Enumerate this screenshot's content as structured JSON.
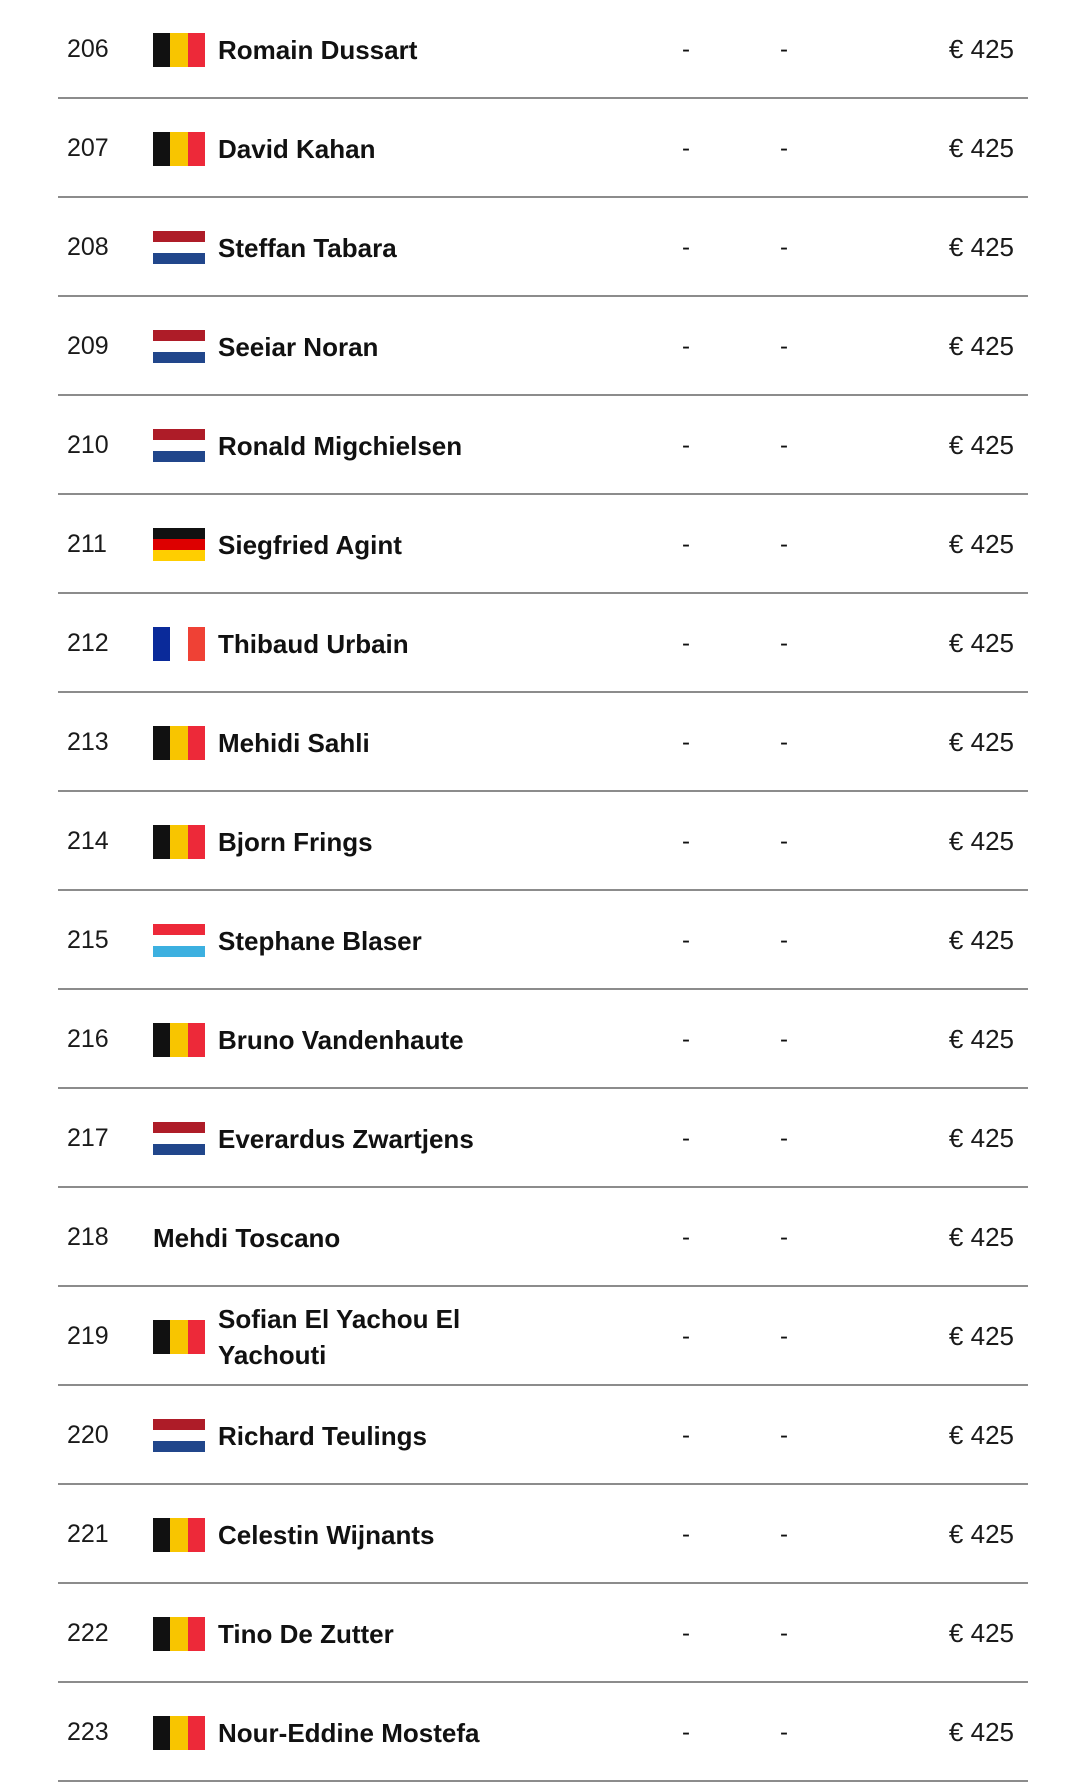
{
  "colors": {
    "be": [
      "#111111",
      "#f8c500",
      "#ed2939"
    ],
    "nl": [
      "#ae1c28",
      "#ffffff",
      "#21468b"
    ],
    "de": [
      "#111111",
      "#dd0000",
      "#ffce00"
    ],
    "fr": [
      "#0a2a9a",
      "#ffffff",
      "#ef4135"
    ],
    "lu": [
      "#ed2939",
      "#ffffff",
      "#3cb0e0"
    ],
    "divider": "#8c8c8c"
  },
  "rows": [
    {
      "rank": "206",
      "flag": "be",
      "name": "Romain Dussart",
      "col_a": "-",
      "col_b": "-",
      "prize": "€ 425"
    },
    {
      "rank": "207",
      "flag": "be",
      "name": "David Kahan",
      "col_a": "-",
      "col_b": "-",
      "prize": "€ 425"
    },
    {
      "rank": "208",
      "flag": "nl",
      "name": "Steffan Tabara",
      "col_a": "-",
      "col_b": "-",
      "prize": "€ 425"
    },
    {
      "rank": "209",
      "flag": "nl",
      "name": "Seeiar Noran",
      "col_a": "-",
      "col_b": "-",
      "prize": "€ 425"
    },
    {
      "rank": "210",
      "flag": "nl",
      "name": "Ronald Migchielsen",
      "col_a": "-",
      "col_b": "-",
      "prize": "€ 425"
    },
    {
      "rank": "211",
      "flag": "de",
      "name": "Siegfried Agint",
      "col_a": "-",
      "col_b": "-",
      "prize": "€ 425"
    },
    {
      "rank": "212",
      "flag": "fr",
      "name": "Thibaud Urbain",
      "col_a": "-",
      "col_b": "-",
      "prize": "€ 425"
    },
    {
      "rank": "213",
      "flag": "be",
      "name": "Mehidi Sahli",
      "col_a": "-",
      "col_b": "-",
      "prize": "€ 425"
    },
    {
      "rank": "214",
      "flag": "be",
      "name": "Bjorn Frings",
      "col_a": "-",
      "col_b": "-",
      "prize": "€ 425"
    },
    {
      "rank": "215",
      "flag": "lu",
      "name": "Stephane Blaser",
      "col_a": "-",
      "col_b": "-",
      "prize": "€ 425"
    },
    {
      "rank": "216",
      "flag": "be",
      "name": "Bruno Vandenhaute",
      "col_a": "-",
      "col_b": "-",
      "prize": "€ 425"
    },
    {
      "rank": "217",
      "flag": "nl",
      "name": "Everardus Zwartjens",
      "col_a": "-",
      "col_b": "-",
      "prize": "€ 425"
    },
    {
      "rank": "218",
      "flag": "",
      "name": "Mehdi Toscano",
      "col_a": "-",
      "col_b": "-",
      "prize": "€ 425"
    },
    {
      "rank": "219",
      "flag": "be",
      "name": "Sofian El Yachou El Yachouti",
      "col_a": "-",
      "col_b": "-",
      "prize": "€ 425"
    },
    {
      "rank": "220",
      "flag": "nl",
      "name": "Richard Teulings",
      "col_a": "-",
      "col_b": "-",
      "prize": "€ 425"
    },
    {
      "rank": "221",
      "flag": "be",
      "name": "Celestin Wijnants",
      "col_a": "-",
      "col_b": "-",
      "prize": "€ 425"
    },
    {
      "rank": "222",
      "flag": "be",
      "name": "Tino De Zutter",
      "col_a": "-",
      "col_b": "-",
      "prize": "€ 425"
    },
    {
      "rank": "223",
      "flag": "be",
      "name": "Nour-Eddine Mostefa",
      "col_a": "-",
      "col_b": "-",
      "prize": "€ 425"
    }
  ]
}
